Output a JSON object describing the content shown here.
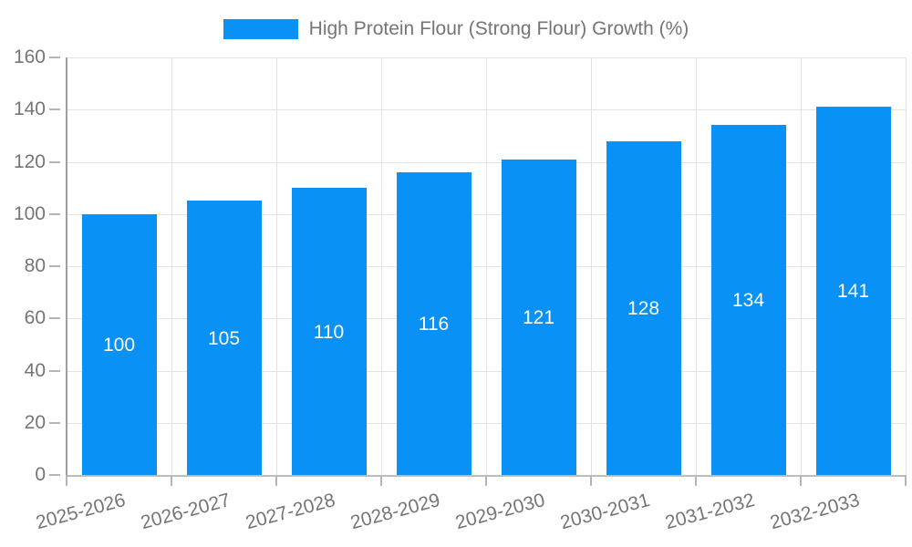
{
  "legend": {
    "label": "High Protein Flour (Strong Flour) Growth (%)"
  },
  "chart_data": {
    "type": "bar",
    "title": "",
    "categories": [
      "2025-2026",
      "2026-2027",
      "2027-2028",
      "2028-2029",
      "2029-2030",
      "2030-2031",
      "2031-2032",
      "2032-2033"
    ],
    "series": [
      {
        "name": "High Protein Flour (Strong Flour) Growth (%)",
        "values": [
          100,
          105,
          110,
          116,
          121,
          128,
          134,
          141
        ]
      }
    ],
    "xlabel": "",
    "ylabel": "",
    "ylim": [
      0,
      160
    ],
    "ytick_step": 20,
    "yticks": [
      0,
      20,
      40,
      60,
      80,
      100,
      120,
      140,
      160
    ],
    "grid": true,
    "grid_vertical": true,
    "legend_position": "top-center",
    "value_label_position": "inside-center",
    "x_label_rotation_deg": -15,
    "colors": {
      "bar": "#0991F6",
      "axis_text": "#757575",
      "bar_label": "#FFFFFF",
      "gridline": "#E4E4E4",
      "y_axis_line": "#9E9E9E",
      "x_axis_line": "#BDBDBD",
      "tick": "#B5B5B5",
      "background": "#FFFFFF"
    }
  }
}
